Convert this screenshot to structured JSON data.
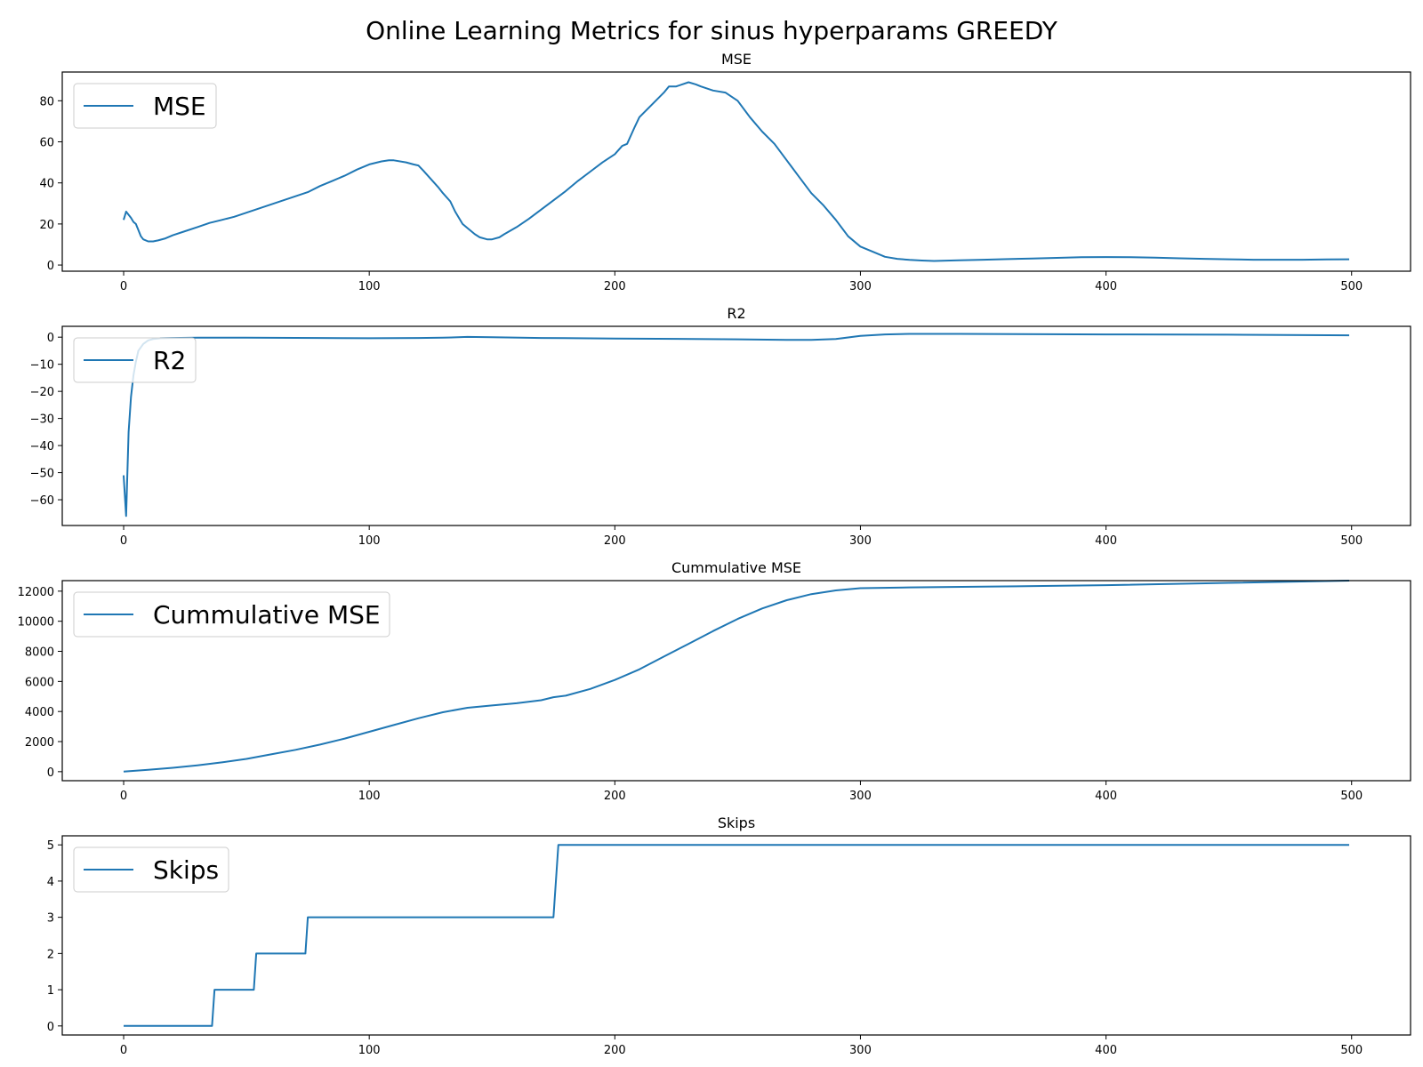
{
  "figure_title": "Online Learning Metrics for sinus hyperparams GREEDY",
  "colors": {
    "line": "#1f77b4",
    "axes": "#000000",
    "legend_border": "#cccccc"
  },
  "chart_data": [
    {
      "type": "line",
      "title": "MSE",
      "xlabel": "",
      "ylabel": "",
      "xlim": [
        -25,
        524
      ],
      "ylim": [
        -3,
        94
      ],
      "grid": false,
      "legend_position": "top-left",
      "x_ticks": [
        0,
        100,
        200,
        300,
        400,
        500
      ],
      "y_ticks": [
        0,
        20,
        40,
        60,
        80
      ],
      "series": [
        {
          "name": "MSE",
          "x": [
            0,
            1,
            3,
            4,
            5,
            6,
            7,
            8,
            10,
            12,
            14,
            17,
            20,
            25,
            30,
            35,
            40,
            45,
            50,
            55,
            60,
            65,
            70,
            75,
            80,
            85,
            90,
            95,
            100,
            105,
            108,
            110,
            115,
            118,
            120,
            122,
            125,
            128,
            130,
            133,
            135,
            138,
            140,
            143,
            145,
            148,
            150,
            153,
            155,
            160,
            165,
            170,
            175,
            180,
            185,
            190,
            195,
            200,
            203,
            205,
            208,
            210,
            215,
            220,
            222,
            225,
            230,
            233,
            235,
            240,
            245,
            250,
            255,
            260,
            265,
            270,
            275,
            280,
            285,
            290,
            295,
            300,
            305,
            310,
            315,
            320,
            325,
            330,
            340,
            350,
            360,
            370,
            380,
            390,
            400,
            410,
            420,
            430,
            440,
            450,
            460,
            470,
            480,
            490,
            499
          ],
          "y": [
            22,
            26,
            23,
            21,
            20,
            17,
            14,
            12.5,
            11.5,
            11.5,
            12,
            13,
            14.5,
            16.5,
            18.5,
            20.5,
            22,
            23.5,
            25.5,
            27.5,
            29.5,
            31.5,
            33.5,
            35.5,
            38.5,
            41,
            43.5,
            46.5,
            49,
            50.5,
            51,
            51,
            50,
            49,
            48.5,
            46,
            42,
            38,
            35,
            31,
            26,
            20,
            18,
            15,
            13.5,
            12.5,
            12.5,
            13.5,
            15,
            18.5,
            22.5,
            27,
            31.5,
            36,
            41,
            45.5,
            50,
            54,
            58,
            59,
            67,
            72,
            78,
            84,
            87,
            87,
            89,
            88,
            87,
            85,
            84,
            80,
            72,
            65,
            59,
            51,
            43,
            35,
            29,
            22,
            14,
            9,
            6.5,
            4,
            3,
            2.5,
            2.2,
            2,
            2.3,
            2.6,
            2.9,
            3.2,
            3.5,
            3.8,
            3.9,
            3.8,
            3.6,
            3.3,
            3,
            2.8,
            2.6,
            2.6,
            2.6,
            2.7,
            2.8
          ]
        }
      ]
    },
    {
      "type": "line",
      "title": "R2",
      "xlabel": "",
      "ylabel": "",
      "xlim": [
        -25,
        524
      ],
      "ylim": [
        -69.5,
        4
      ],
      "grid": false,
      "legend_position": "top-left",
      "x_ticks": [
        0,
        100,
        200,
        300,
        400,
        500
      ],
      "y_ticks": [
        0,
        -10,
        -20,
        -30,
        -40,
        -50,
        -60
      ],
      "series": [
        {
          "name": "R2",
          "x": [
            0,
            1,
            2,
            3,
            4,
            5,
            6,
            8,
            10,
            12,
            15,
            20,
            30,
            50,
            80,
            100,
            120,
            130,
            140,
            150,
            170,
            200,
            250,
            270,
            280,
            290,
            300,
            310,
            320,
            340,
            400,
            450,
            499
          ],
          "y": [
            -51,
            -66,
            -35,
            -22,
            -14,
            -9,
            -5,
            -2.5,
            -1.2,
            -0.7,
            -0.4,
            -0.3,
            -0.2,
            -0.2,
            -0.3,
            -0.4,
            -0.3,
            -0.2,
            0.1,
            0,
            -0.3,
            -0.5,
            -0.8,
            -1,
            -1,
            -0.7,
            0.5,
            1,
            1.2,
            1.2,
            1,
            0.9,
            0.7
          ]
        }
      ]
    },
    {
      "type": "line",
      "title": "Cummulative MSE",
      "xlabel": "",
      "ylabel": "",
      "xlim": [
        -25,
        524
      ],
      "ylim": [
        -600,
        12700
      ],
      "grid": false,
      "legend_position": "top-left",
      "x_ticks": [
        0,
        100,
        200,
        300,
        400,
        500
      ],
      "y_ticks": [
        0,
        2000,
        4000,
        6000,
        8000,
        10000,
        12000
      ],
      "series": [
        {
          "name": "Cummulative MSE",
          "x": [
            0,
            10,
            20,
            30,
            40,
            50,
            60,
            70,
            80,
            90,
            100,
            110,
            120,
            130,
            140,
            150,
            160,
            170,
            175,
            180,
            190,
            200,
            210,
            220,
            230,
            240,
            250,
            260,
            270,
            280,
            290,
            300,
            320,
            350,
            400,
            450,
            499
          ],
          "y": [
            0,
            120,
            260,
            420,
            620,
            850,
            1150,
            1450,
            1800,
            2200,
            2650,
            3100,
            3550,
            3950,
            4250,
            4400,
            4550,
            4750,
            4950,
            5050,
            5500,
            6100,
            6800,
            7650,
            8500,
            9350,
            10150,
            10850,
            11400,
            11800,
            12050,
            12200,
            12250,
            12300,
            12400,
            12550,
            12700
          ]
        }
      ]
    },
    {
      "type": "line",
      "title": "Skips",
      "xlabel": "",
      "ylabel": "",
      "xlim": [
        -25,
        524
      ],
      "ylim": [
        -0.25,
        5.25
      ],
      "grid": false,
      "legend_position": "top-left",
      "x_ticks": [
        0,
        100,
        200,
        300,
        400,
        500
      ],
      "y_ticks": [
        0,
        1,
        2,
        3,
        4,
        5
      ],
      "series": [
        {
          "name": "Skips",
          "x": [
            0,
            36,
            37,
            53,
            54,
            74,
            75,
            175,
            177,
            499
          ],
          "y": [
            0,
            0,
            1,
            1,
            2,
            2,
            3,
            3,
            5,
            5
          ]
        }
      ]
    }
  ]
}
